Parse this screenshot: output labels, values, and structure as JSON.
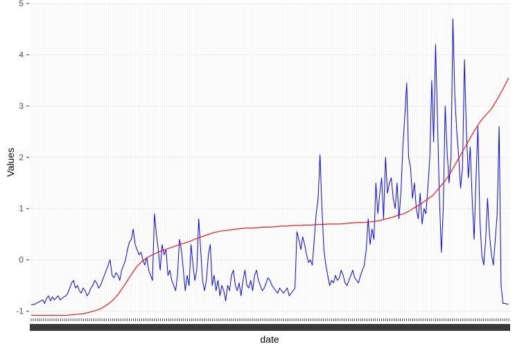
{
  "chart_data": {
    "type": "line",
    "title": "",
    "xlabel": "date",
    "ylabel": "Values",
    "ylim": [
      -1.1,
      5.0
    ],
    "yticks": [
      -1,
      0,
      1,
      2,
      3,
      4,
      5
    ],
    "x_tick_labels_legible": false,
    "grid": true,
    "background": "#ffffff",
    "gridColor": "#ebebeb",
    "series": [
      {
        "color": "#0000ff",
        "style": "jagged",
        "values": [
          -0.88,
          -0.87,
          -0.86,
          -0.84,
          -0.82,
          -0.8,
          -0.78,
          -0.85,
          -0.75,
          -0.7,
          -0.8,
          -0.72,
          -0.78,
          -0.74,
          -0.7,
          -0.78,
          -0.75,
          -0.72,
          -0.7,
          -0.65,
          -0.55,
          -0.45,
          -0.4,
          -0.55,
          -0.5,
          -0.6,
          -0.65,
          -0.55,
          -0.6,
          -0.7,
          -0.65,
          -0.55,
          -0.5,
          -0.4,
          -0.45,
          -0.55,
          -0.5,
          -0.4,
          -0.3,
          -0.2,
          -0.1,
          0.0,
          -0.3,
          -0.35,
          -0.25,
          -0.3,
          -0.4,
          -0.2,
          -0.1,
          0.0,
          0.2,
          0.35,
          0.4,
          0.6,
          0.3,
          0.2,
          0.1,
          0.15,
          0.0,
          -0.1,
          0.05,
          -0.2,
          -0.3,
          -0.4,
          0.9,
          0.5,
          0.2,
          -0.2,
          0.3,
          0.1,
          0.2,
          -0.3,
          -0.2,
          -0.4,
          -0.5,
          -0.6,
          -0.3,
          0.4,
          0.2,
          -0.2,
          -0.6,
          -0.3,
          -0.5,
          0.3,
          -0.1,
          -0.4,
          -0.2,
          0.8,
          0.2,
          -0.4,
          -0.6,
          -0.4,
          0.1,
          0.3,
          -0.5,
          -0.3,
          -0.6,
          -0.4,
          -0.7,
          -0.5,
          -0.6,
          -0.8,
          -0.5,
          -0.6,
          -0.3,
          -0.2,
          -0.5,
          -0.6,
          -0.45,
          -0.7,
          -0.4,
          -0.2,
          -0.5,
          -0.55,
          -0.4,
          -0.6,
          -0.3,
          -0.2,
          -0.4,
          -0.5,
          -0.6,
          -0.55,
          -0.45,
          -0.35,
          -0.4,
          -0.5,
          -0.55,
          -0.6,
          -0.65,
          -0.55,
          -0.6,
          -0.65,
          -0.6,
          -0.55,
          -0.7,
          -0.65,
          -0.6,
          -0.55,
          0.55,
          0.4,
          0.2,
          0.45,
          0.3,
          0.1,
          -0.05,
          0.0,
          -0.1,
          0.4,
          0.9,
          1.2,
          2.05,
          1.0,
          0.2,
          -0.1,
          -0.3,
          -0.5,
          -0.4,
          -0.45,
          -0.3,
          -0.4,
          -0.35,
          -0.2,
          -0.3,
          -0.45,
          -0.5,
          -0.4,
          -0.3,
          -0.2,
          -0.35,
          -0.4,
          -0.45,
          -0.3,
          -0.2,
          -0.1,
          0.2,
          0.8,
          0.3,
          0.6,
          0.4,
          1.5,
          0.9,
          1.3,
          1.6,
          0.8,
          2.0,
          1.3,
          1.5,
          1.6,
          1.2,
          1.0,
          1.5,
          0.8,
          1.3,
          2.2,
          2.8,
          3.45,
          2.0,
          1.8,
          1.2,
          1.5,
          1.0,
          0.8,
          1.3,
          0.7,
          1.0,
          0.9,
          1.4,
          2.0,
          3.5,
          2.3,
          4.2,
          2.7,
          1.2,
          0.15,
          1.0,
          3.0,
          2.1,
          1.5,
          2.0,
          4.7,
          3.2,
          2.5,
          2.0,
          1.4,
          1.8,
          3.9,
          2.5,
          1.6,
          2.2,
          1.2,
          0.4,
          1.6,
          2.6,
          0.8,
          0.1,
          -0.1,
          0.4,
          1.2,
          0.5,
          0.1,
          -0.1,
          0.4,
          0.9,
          2.6,
          -0.5,
          -0.85,
          -0.85,
          -0.86,
          -0.86
        ]
      },
      {
        "color": "#ff0000",
        "style": "smooth",
        "values": [
          -1.08,
          -1.08,
          -1.08,
          -1.08,
          -1.08,
          -1.08,
          -1.08,
          -1.07,
          -1.06,
          -1.05,
          -1.02,
          -0.99,
          -0.95,
          -0.88,
          -0.79,
          -0.66,
          -0.5,
          -0.32,
          -0.15,
          -0.03,
          0.05,
          0.11,
          0.16,
          0.2,
          0.24,
          0.28,
          0.32,
          0.35,
          0.4,
          0.44,
          0.48,
          0.52,
          0.55,
          0.57,
          0.58,
          0.6,
          0.61,
          0.62,
          0.62,
          0.63,
          0.64,
          0.64,
          0.65,
          0.66,
          0.66,
          0.67,
          0.67,
          0.68,
          0.68,
          0.69,
          0.69,
          0.7,
          0.7,
          0.7,
          0.71,
          0.72,
          0.73,
          0.73,
          0.74,
          0.75,
          0.77,
          0.8,
          0.83,
          0.87,
          0.9,
          0.96,
          1.03,
          1.1,
          1.18,
          1.26,
          1.4,
          1.53,
          1.7,
          1.9,
          2.1,
          2.3,
          2.5,
          2.68,
          2.82,
          2.94,
          3.13,
          3.33,
          3.55
        ]
      }
    ]
  }
}
